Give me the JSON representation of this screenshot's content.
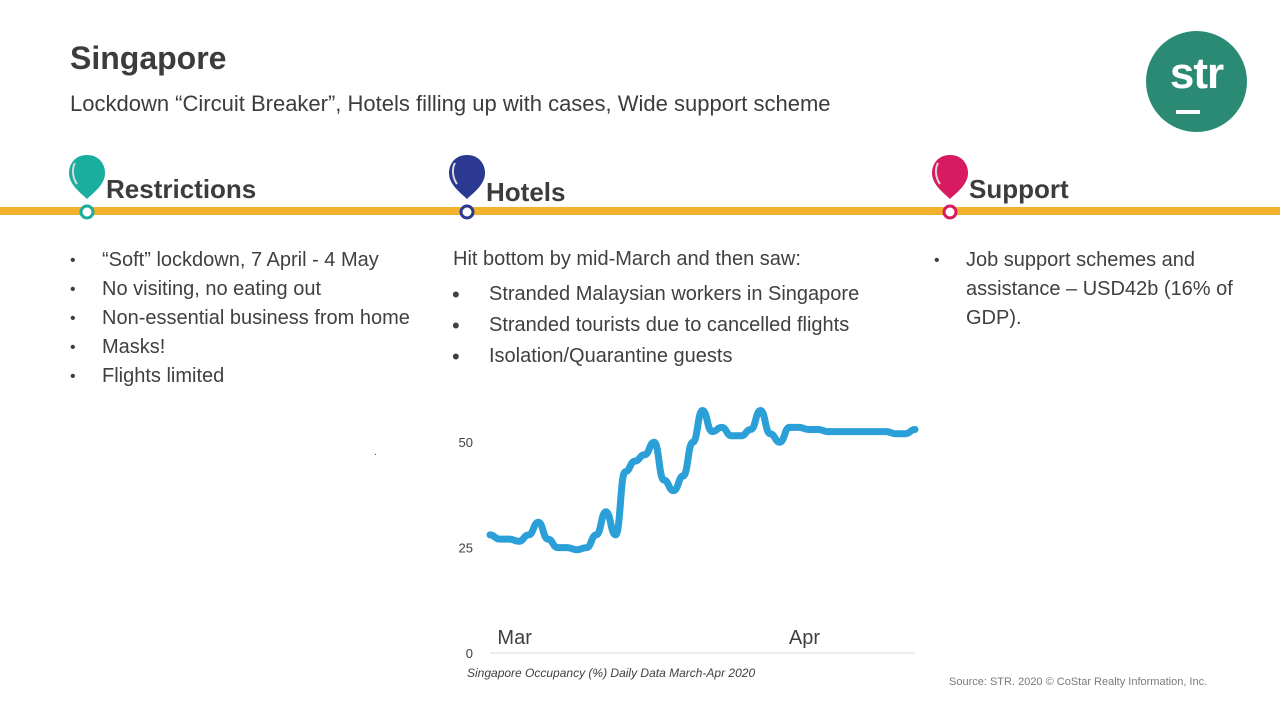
{
  "header": {
    "title": "Singapore",
    "subtitle": "Lockdown “Circuit Breaker”, Hotels filling up with cases, Wide support scheme"
  },
  "logo": {
    "text": "str",
    "color": "#2a8a73"
  },
  "timeline_color": "#f2b22c",
  "sections": [
    {
      "heading": "Restrictions",
      "pin_color": "#1aae9f",
      "pin_icon": "map-pin-icon",
      "bullets": [
        "“Soft” lockdown, 7 April - 4 May",
        "No visiting, no eating out",
        "Non-essential business from home",
        "Masks!",
        "Flights limited"
      ]
    },
    {
      "heading": "Hotels",
      "pin_color": "#2b3990",
      "pin_icon": "map-pin-icon",
      "intro": "Hit bottom by mid-March and then saw:",
      "bullets": [
        "Stranded Malaysian workers in Singapore",
        "Stranded tourists due to cancelled flights",
        "Isolation/Quarantine guests"
      ]
    },
    {
      "heading": "Support",
      "pin_color": "#d81b60",
      "pin_icon": "map-pin-icon",
      "bullets": [
        "Job support schemes and assistance – USD42b (16% of GDP)."
      ]
    }
  ],
  "stray_mark": ".",
  "chart_data": {
    "type": "line",
    "caption": "Singapore Occupancy (%) Daily Data March-Apr 2020",
    "x_tick_labels": [
      "Mar",
      "Apr"
    ],
    "x_tick_positions": [
      1,
      31
    ],
    "y_ticks": [
      0,
      25,
      50
    ],
    "ylim": [
      0,
      60
    ],
    "xlim": [
      0,
      44
    ],
    "line_color": "#2a9fd8",
    "grid": false,
    "series": [
      {
        "x": [
          0,
          1,
          2,
          3,
          4,
          5,
          6,
          7,
          8,
          9,
          10,
          11,
          12,
          13,
          14,
          15,
          16,
          17,
          18,
          19,
          20,
          21,
          22,
          23,
          24,
          25,
          26,
          27,
          28,
          29,
          30,
          31,
          32,
          33,
          34,
          35,
          36,
          37,
          38,
          39,
          40,
          41,
          42,
          43,
          44
        ],
        "values": [
          28,
          27,
          27,
          26.5,
          28,
          31,
          27,
          25,
          25,
          24.5,
          25,
          28,
          33.5,
          28,
          43,
          45.5,
          47,
          50,
          41,
          38.5,
          42,
          50,
          57.5,
          52.5,
          53.5,
          51.5,
          51.5,
          53,
          57.5,
          52,
          50,
          53.5,
          53.5,
          53,
          53,
          52.5,
          52.5,
          52.5,
          52.5,
          52.5,
          52.5,
          52.5,
          52,
          52,
          53
        ]
      }
    ]
  },
  "source": "Source: STR. 2020 © CoStar Realty Information, Inc."
}
